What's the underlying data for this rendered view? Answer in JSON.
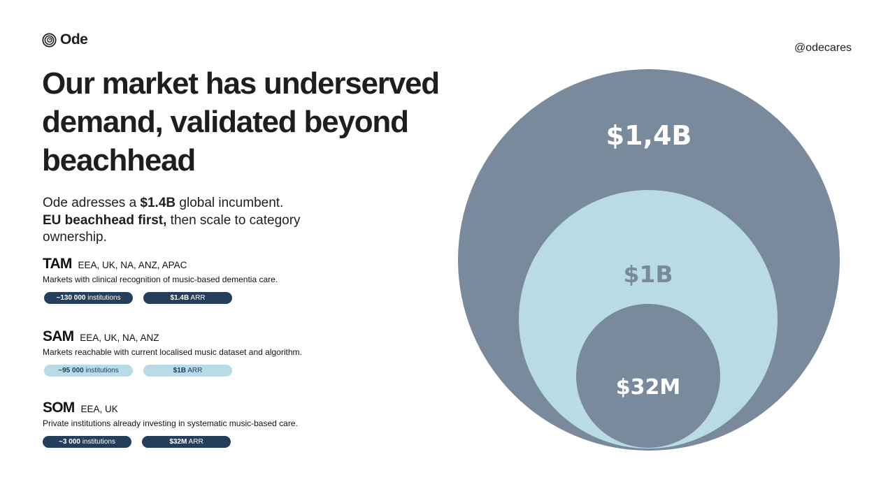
{
  "brand": {
    "name": "Ode",
    "handle": "@odecares",
    "logo_icon": "spiral-logo-icon"
  },
  "title_lines": [
    "Our market has underserved",
    "demand, validated beyond",
    "beachhead"
  ],
  "intro": {
    "line1": {
      "pre": "Ode adresses a ",
      "bold": "$1.4B",
      "post": " global incumbent."
    },
    "line2": {
      "bold": "EU beachhead first,",
      "post": " then scale to category"
    },
    "line3": "ownership."
  },
  "segments": [
    {
      "name": "TAM",
      "regions": "EEA, UK, NA, ANZ, APAC",
      "description": "Markets with clinical recognition of music-based dementia care.",
      "institutions": {
        "bold": "~130 000",
        "rest": " institutions"
      },
      "arr": {
        "bold": "$1.4B",
        "rest": " ARR"
      },
      "pill_style": "dark"
    },
    {
      "name": "SAM",
      "regions": "EEA, UK, NA, ANZ",
      "description": "Markets reachable with current localised music dataset and algorithm.",
      "institutions": {
        "bold": "~95 000",
        "rest": " institutions"
      },
      "arr": {
        "bold": "$1B",
        "rest": " ARR"
      },
      "pill_style": "light"
    },
    {
      "name": "SOM",
      "regions": "EEA, UK",
      "description": "Private institutions already investing in systematic music-based care.",
      "institutions": {
        "bold": "~3 000",
        "rest": " institutions"
      },
      "arr": {
        "bold": "$32M",
        "rest": " ARR"
      },
      "pill_style": "dark"
    }
  ],
  "colors": {
    "dark_navy": "#253e5c",
    "slate": "#7a8a9d",
    "light_blue": "#b9dbe6",
    "text": "#1e1e1e"
  },
  "circles": [
    {
      "label": "$1,4B",
      "fill": "#7a8a9d",
      "text_color": "#ffffff"
    },
    {
      "label": "$1B",
      "fill": "#b9dbe6",
      "text_color": "#7a8a9d"
    },
    {
      "label": "$32M",
      "fill": "#7a8a9d",
      "text_color": "#ffffff"
    }
  ]
}
